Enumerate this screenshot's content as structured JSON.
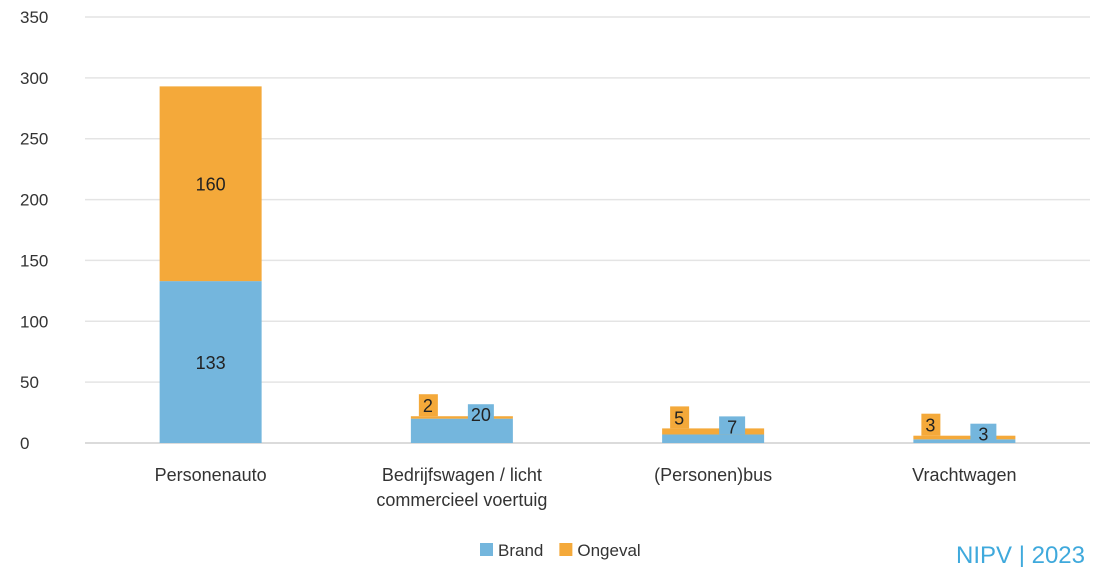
{
  "chart_data": {
    "type": "bar",
    "stacked": true,
    "categories": [
      [
        "Personenauto"
      ],
      [
        "Bedrijfswagen / licht",
        "commercieel voertuig"
      ],
      [
        "(Personen)bus"
      ],
      [
        "Vrachtwagen"
      ]
    ],
    "series": [
      {
        "name": "Brand",
        "color": "#74b6dd",
        "values": [
          133,
          20,
          7,
          3
        ]
      },
      {
        "name": "Ongeval",
        "color": "#f4a93a",
        "values": [
          160,
          2,
          5,
          3
        ]
      }
    ],
    "ylim": [
      0,
      350
    ],
    "yticks": [
      0,
      50,
      100,
      150,
      200,
      250,
      300,
      350
    ],
    "grid": true,
    "legend_position": "bottom"
  },
  "credit": "NIPV | 2023"
}
